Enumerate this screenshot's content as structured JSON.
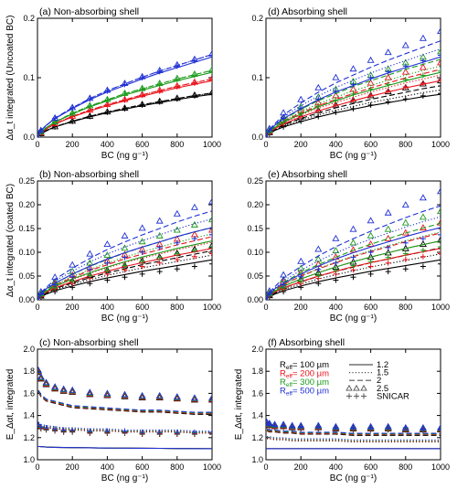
{
  "chart_data": [
    {
      "type": "line",
      "title": "(a) Non-absorbing shell",
      "xlabel": "BC (ng g⁻¹)",
      "ylabel": "Δα_t integrated (Uncoated BC)",
      "xlim": [
        0,
        1000
      ],
      "ylim": [
        0,
        0.2
      ],
      "xticks": [
        "0",
        "200",
        "400",
        "600",
        "800",
        "1000"
      ],
      "yticks": [
        "0.0",
        "0.1",
        "0.2"
      ],
      "x": [
        0,
        10,
        50,
        100,
        200,
        300,
        400,
        500,
        600,
        700,
        800,
        900,
        1000
      ],
      "series": [
        {
          "name": "R_eff = 100 µm",
          "color": "#000000",
          "values": [
            0,
            0.004,
            0.011,
            0.017,
            0.026,
            0.034,
            0.041,
            0.047,
            0.053,
            0.058,
            0.063,
            0.068,
            0.072
          ]
        },
        {
          "name": "R_eff = 200 µm",
          "color": "#e8111a",
          "values": [
            0,
            0.005,
            0.014,
            0.022,
            0.034,
            0.044,
            0.053,
            0.061,
            0.069,
            0.076,
            0.083,
            0.089,
            0.095
          ]
        },
        {
          "name": "R_eff = 300 µm",
          "color": "#1a9a1a",
          "values": [
            0,
            0.006,
            0.016,
            0.025,
            0.039,
            0.051,
            0.061,
            0.071,
            0.079,
            0.087,
            0.095,
            0.102,
            0.109
          ]
        },
        {
          "name": "R_eff = 500 µm",
          "color": "#1f2fd4",
          "values": [
            0,
            0.008,
            0.02,
            0.031,
            0.048,
            0.063,
            0.076,
            0.087,
            0.098,
            0.108,
            0.117,
            0.126,
            0.135
          ]
        }
      ]
    },
    {
      "type": "line",
      "title": "(d) Absorbing shell",
      "xlabel": "BC (ng g⁻¹)",
      "ylabel": "",
      "xlim": [
        0,
        1000
      ],
      "ylim": [
        0,
        0.2
      ],
      "xticks": [
        "0",
        "200",
        "400",
        "600",
        "800",
        "1000"
      ],
      "yticks": [
        "0.0",
        "0.1",
        "0.2"
      ],
      "x": [
        0,
        10,
        50,
        100,
        200,
        300,
        400,
        500,
        600,
        700,
        800,
        900,
        1000
      ],
      "series": [
        {
          "name": "R_eff = 100 µm",
          "color": "#000000",
          "values": [
            0,
            0.004,
            0.011,
            0.017,
            0.026,
            0.034,
            0.041,
            0.047,
            0.053,
            0.058,
            0.063,
            0.068,
            0.072
          ]
        },
        {
          "name": "R_eff = 200 µm",
          "color": "#e8111a",
          "values": [
            0,
            0.005,
            0.014,
            0.022,
            0.034,
            0.044,
            0.053,
            0.061,
            0.069,
            0.076,
            0.083,
            0.089,
            0.095
          ]
        },
        {
          "name": "R_eff = 300 µm",
          "color": "#1a9a1a",
          "values": [
            0,
            0.006,
            0.016,
            0.025,
            0.039,
            0.051,
            0.061,
            0.071,
            0.079,
            0.087,
            0.095,
            0.102,
            0.109
          ]
        },
        {
          "name": "R_eff = 500 µm",
          "color": "#1f2fd4",
          "values": [
            0,
            0.008,
            0.02,
            0.031,
            0.048,
            0.063,
            0.076,
            0.087,
            0.098,
            0.108,
            0.117,
            0.126,
            0.135
          ]
        }
      ]
    },
    {
      "type": "line",
      "title": "(b) Non-absorbing shell",
      "xlabel": "BC (ng g⁻¹)",
      "ylabel": "Δα_t integrated (coated BC)",
      "xlim": [
        0,
        1000
      ],
      "ylim": [
        0,
        0.25
      ],
      "xticks": [
        "0",
        "200",
        "400",
        "600",
        "800",
        "1000"
      ],
      "yticks": [
        "0.00",
        "0.05",
        "0.10",
        "0.15",
        "0.20",
        "0.25"
      ],
      "x": [
        0,
        10,
        50,
        100,
        200,
        300,
        400,
        500,
        600,
        700,
        800,
        900,
        1000
      ],
      "series": [
        {
          "name": "R_eff = 100 µm",
          "color": "#000000",
          "values": [
            0,
            0.004,
            0.012,
            0.019,
            0.029,
            0.038,
            0.046,
            0.053,
            0.06,
            0.066,
            0.072,
            0.078,
            0.084
          ]
        },
        {
          "name": "R_eff = 200 µm",
          "color": "#e8111a",
          "values": [
            0,
            0.006,
            0.016,
            0.025,
            0.038,
            0.05,
            0.06,
            0.07,
            0.078,
            0.086,
            0.094,
            0.101,
            0.108
          ]
        },
        {
          "name": "R_eff = 300 µm",
          "color": "#1a9a1a",
          "values": [
            0,
            0.007,
            0.018,
            0.028,
            0.044,
            0.057,
            0.069,
            0.08,
            0.09,
            0.099,
            0.108,
            0.116,
            0.124
          ]
        },
        {
          "name": "R_eff = 500 µm",
          "color": "#1f2fd4",
          "values": [
            0,
            0.009,
            0.023,
            0.035,
            0.054,
            0.071,
            0.086,
            0.099,
            0.111,
            0.122,
            0.133,
            0.143,
            0.152
          ]
        }
      ]
    },
    {
      "type": "line",
      "title": "(e) Absorbing shell",
      "xlabel": "BC (ng g⁻¹)",
      "ylabel": "",
      "xlim": [
        0,
        1000
      ],
      "ylim": [
        0,
        0.25
      ],
      "xticks": [
        "0",
        "200",
        "400",
        "600",
        "800",
        "1000"
      ],
      "yticks": [
        "0.00",
        "0.05",
        "0.10",
        "0.15",
        "0.20",
        "0.25"
      ],
      "x": [
        0,
        10,
        50,
        100,
        200,
        300,
        400,
        500,
        600,
        700,
        800,
        900,
        1000
      ],
      "series": [
        {
          "name": "R_eff = 100 µm",
          "color": "#000000",
          "values": [
            0,
            0.004,
            0.012,
            0.019,
            0.029,
            0.038,
            0.046,
            0.053,
            0.06,
            0.066,
            0.072,
            0.078,
            0.084
          ]
        },
        {
          "name": "R_eff = 200 µm",
          "color": "#e8111a",
          "values": [
            0,
            0.006,
            0.016,
            0.025,
            0.038,
            0.05,
            0.06,
            0.07,
            0.078,
            0.086,
            0.094,
            0.101,
            0.108
          ]
        },
        {
          "name": "R_eff = 300 µm",
          "color": "#1a9a1a",
          "values": [
            0,
            0.007,
            0.018,
            0.028,
            0.044,
            0.057,
            0.069,
            0.08,
            0.09,
            0.099,
            0.108,
            0.116,
            0.124
          ]
        },
        {
          "name": "R_eff = 500 µm",
          "color": "#1f2fd4",
          "values": [
            0,
            0.009,
            0.023,
            0.035,
            0.054,
            0.071,
            0.086,
            0.099,
            0.111,
            0.122,
            0.133,
            0.143,
            0.152
          ]
        }
      ]
    },
    {
      "type": "line",
      "title": "(c) Non-absorbing shell",
      "xlabel": "BC (ng g⁻¹)",
      "ylabel": "E_Δαt, integrated",
      "xlim": [
        0,
        1000
      ],
      "ylim": [
        1.0,
        2.0
      ],
      "xticks": [
        "0",
        "200",
        "400",
        "600",
        "800",
        "1000"
      ],
      "yticks": [
        "1.0",
        "1.2",
        "1.4",
        "1.6",
        "1.8",
        "2.0"
      ],
      "x": [
        0,
        10,
        50,
        100,
        200,
        300,
        400,
        500,
        600,
        700,
        800,
        900,
        1000
      ],
      "series": [
        {
          "name": "R_eff = 100 µm",
          "color": "#000000",
          "values": [
            1.12,
            1.12,
            1.115,
            1.112,
            1.11,
            1.108,
            1.106,
            1.105,
            1.104,
            1.103,
            1.102,
            1.101,
            1.1
          ]
        },
        {
          "name": "R_eff = 200 µm",
          "color": "#e8111a",
          "values": [
            1.12,
            1.12,
            1.115,
            1.112,
            1.11,
            1.108,
            1.106,
            1.105,
            1.104,
            1.103,
            1.102,
            1.101,
            1.1
          ]
        },
        {
          "name": "R_eff = 300 µm",
          "color": "#1a9a1a",
          "values": [
            1.12,
            1.12,
            1.115,
            1.112,
            1.11,
            1.108,
            1.106,
            1.105,
            1.104,
            1.103,
            1.102,
            1.101,
            1.1
          ]
        },
        {
          "name": "R_eff = 500 µm",
          "color": "#1f2fd4",
          "values": [
            1.12,
            1.12,
            1.115,
            1.112,
            1.11,
            1.108,
            1.106,
            1.105,
            1.104,
            1.103,
            1.102,
            1.101,
            1.1
          ]
        }
      ]
    },
    {
      "type": "line",
      "title": "(f) Absorbing shell",
      "xlabel": "BC (ng g⁻¹)",
      "ylabel": "E_Δαt, integrated",
      "xlim": [
        0,
        1000
      ],
      "ylim": [
        1.0,
        2.0
      ],
      "xticks": [
        "0",
        "200",
        "400",
        "600",
        "800",
        "1000"
      ],
      "yticks": [
        "1.0",
        "1.2",
        "1.4",
        "1.6",
        "1.8",
        "2.0"
      ],
      "x": [
        0,
        10,
        50,
        100,
        200,
        300,
        400,
        500,
        600,
        700,
        800,
        900,
        1000
      ],
      "series": [
        {
          "name": "R_eff = 100 µm",
          "color": "#000000",
          "values": [
            1.1,
            1.1,
            1.1,
            1.1,
            1.1,
            1.1,
            1.1,
            1.1,
            1.1,
            1.1,
            1.1,
            1.1,
            1.1
          ]
        },
        {
          "name": "R_eff = 200 µm",
          "color": "#e8111a",
          "values": [
            1.1,
            1.1,
            1.1,
            1.1,
            1.1,
            1.1,
            1.1,
            1.1,
            1.1,
            1.1,
            1.1,
            1.1,
            1.1
          ]
        },
        {
          "name": "R_eff = 300 µm",
          "color": "#1a9a1a",
          "values": [
            1.1,
            1.1,
            1.1,
            1.1,
            1.1,
            1.1,
            1.1,
            1.1,
            1.1,
            1.1,
            1.1,
            1.1,
            1.1
          ]
        },
        {
          "name": "R_eff = 500 µm",
          "color": "#1f2fd4",
          "values": [
            1.1,
            1.1,
            1.1,
            1.1,
            1.1,
            1.1,
            1.1,
            1.1,
            1.1,
            1.1,
            1.1,
            1.1,
            1.1
          ]
        }
      ]
    }
  ],
  "overlays": {
    "a": {
      "x": [
        0,
        20,
        100,
        200,
        300,
        400,
        500,
        600,
        700,
        800,
        900,
        1000
      ],
      "factors": {
        "1.5": 1.03,
        "2": 1.03,
        "2.5": 1.04,
        "SNICAR": 1.02
      }
    },
    "d": {
      "x": [
        0,
        20,
        100,
        200,
        300,
        400,
        500,
        600,
        700,
        800,
        900,
        1000
      ],
      "factors": {
        "1.5": 1.1,
        "2": 1.2,
        "2.5": 1.32,
        "SNICAR": 1.02
      }
    },
    "b": {
      "x": [
        0,
        20,
        100,
        200,
        300,
        400,
        500,
        600,
        700,
        800,
        900,
        1000
      ],
      "factors": {
        "1.5": 1.12,
        "2": 1.23,
        "2.5": 1.36,
        "SNICAR": 0.9
      }
    },
    "e": {
      "x": [
        0,
        20,
        100,
        200,
        300,
        400,
        500,
        600,
        700,
        800,
        900,
        1000
      ],
      "factors": {
        "1.5": 1.15,
        "2": 1.3,
        "2.5": 1.5,
        "SNICAR": 0.9
      }
    },
    "c": {
      "x": [
        5,
        20,
        50,
        100,
        150,
        200,
        300,
        400,
        500,
        600,
        700,
        800,
        900,
        1000
      ],
      "levels": {
        "1.5": [
          1.33,
          1.31,
          1.3,
          1.29,
          1.28,
          1.28,
          1.27,
          1.27,
          1.26,
          1.26,
          1.26,
          1.26,
          1.25,
          1.25
        ],
        "2": [
          1.62,
          1.58,
          1.54,
          1.52,
          1.5,
          1.48,
          1.47,
          1.46,
          1.45,
          1.44,
          1.44,
          1.43,
          1.42,
          1.42
        ],
        "2.5": [
          1.8,
          1.74,
          1.69,
          1.65,
          1.63,
          1.62,
          1.6,
          1.59,
          1.58,
          1.57,
          1.57,
          1.56,
          1.55,
          1.55
        ],
        "SNICAR": [
          1.31,
          1.29,
          1.28,
          1.27,
          1.26,
          1.26,
          1.25,
          1.25,
          1.25,
          1.24,
          1.24,
          1.24,
          1.24,
          1.24
        ]
      }
    },
    "f": {
      "x": [
        5,
        20,
        50,
        100,
        150,
        200,
        300,
        400,
        500,
        600,
        700,
        800,
        900,
        1000
      ],
      "levels": {
        "1.5": [
          1.2,
          1.2,
          1.19,
          1.19,
          1.18,
          1.18,
          1.18,
          1.18,
          1.17,
          1.17,
          1.17,
          1.17,
          1.17,
          1.17
        ],
        "2": [
          1.27,
          1.26,
          1.26,
          1.25,
          1.25,
          1.24,
          1.24,
          1.24,
          1.23,
          1.23,
          1.23,
          1.23,
          1.23,
          1.23
        ],
        "2.5": [
          1.33,
          1.32,
          1.31,
          1.31,
          1.3,
          1.3,
          1.3,
          1.29,
          1.29,
          1.29,
          1.29,
          1.28,
          1.28,
          1.28
        ],
        "SNICAR": [
          1.32,
          1.31,
          1.3,
          1.3,
          1.29,
          1.29,
          1.29,
          1.28,
          1.28,
          1.28,
          1.28,
          1.28,
          1.27,
          1.27
        ]
      }
    }
  },
  "legend": {
    "reff_entries": [
      {
        "label": "R",
        "sub": "eff",
        "value": "= 100 µm",
        "color": "#000000"
      },
      {
        "label": "R",
        "sub": "eff",
        "value": "= 200 µm",
        "color": "#e8111a"
      },
      {
        "label": "R",
        "sub": "eff",
        "value": "= 300 µm",
        "color": "#1a9a1a"
      },
      {
        "label": "R",
        "sub": "eff",
        "value": "= 500 µm",
        "color": "#1f2fd4"
      }
    ],
    "style_entries": [
      {
        "label": "1.2",
        "style": "solid"
      },
      {
        "label": "1.5",
        "style": "dotted"
      },
      {
        "label": "2",
        "style": "dashed"
      },
      {
        "label": "2.5",
        "style": "triangle"
      },
      {
        "label": "SNICAR",
        "style": "plus"
      }
    ]
  }
}
